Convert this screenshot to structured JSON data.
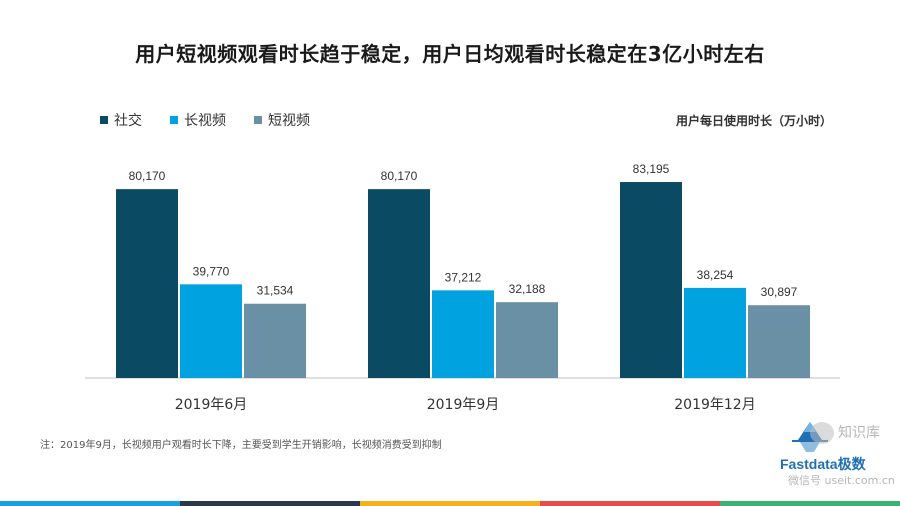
{
  "title": "用户短视频观看时长趋于稳定，用户日均观看时长稳定在3亿小时左右",
  "unit_label": "用户每日使用时长（万小时）",
  "note": "注：2019年9月，长视频用户观看时长下降，主要受到学生开销影响，长视频消费受到抑制",
  "watermark": {
    "brand": "Fastdata极数",
    "name": "知识库",
    "sub": "微信号 useit.com.cn"
  },
  "colors": {
    "social": "#0b4a63",
    "long_video": "#00a3df",
    "short_video": "#6a90a6",
    "axis": "#bfbfbf",
    "footer": [
      "#1aa0de",
      "#2b3a4a",
      "#f2b21b",
      "#e84d4d",
      "#3cb371"
    ]
  },
  "chart_data": {
    "type": "bar",
    "categories": [
      "2019年6月",
      "2019年9月",
      "2019年12月"
    ],
    "series": [
      {
        "name": "社交",
        "values": [
          80170,
          80170,
          83195
        ]
      },
      {
        "name": "长视频",
        "values": [
          39770,
          37212,
          38254
        ]
      },
      {
        "name": "短视频",
        "values": [
          31534,
          32188,
          30897
        ]
      }
    ],
    "value_labels": [
      [
        "80,170",
        "80,170",
        "83,195"
      ],
      [
        "39,770",
        "37,212",
        "38,254"
      ],
      [
        "31,534",
        "32,188",
        "30,897"
      ]
    ],
    "ylabel": "用户每日使用时长（万小时）",
    "ylim": [
      0,
      90000
    ],
    "legend_position": "top-left",
    "grid": false
  }
}
